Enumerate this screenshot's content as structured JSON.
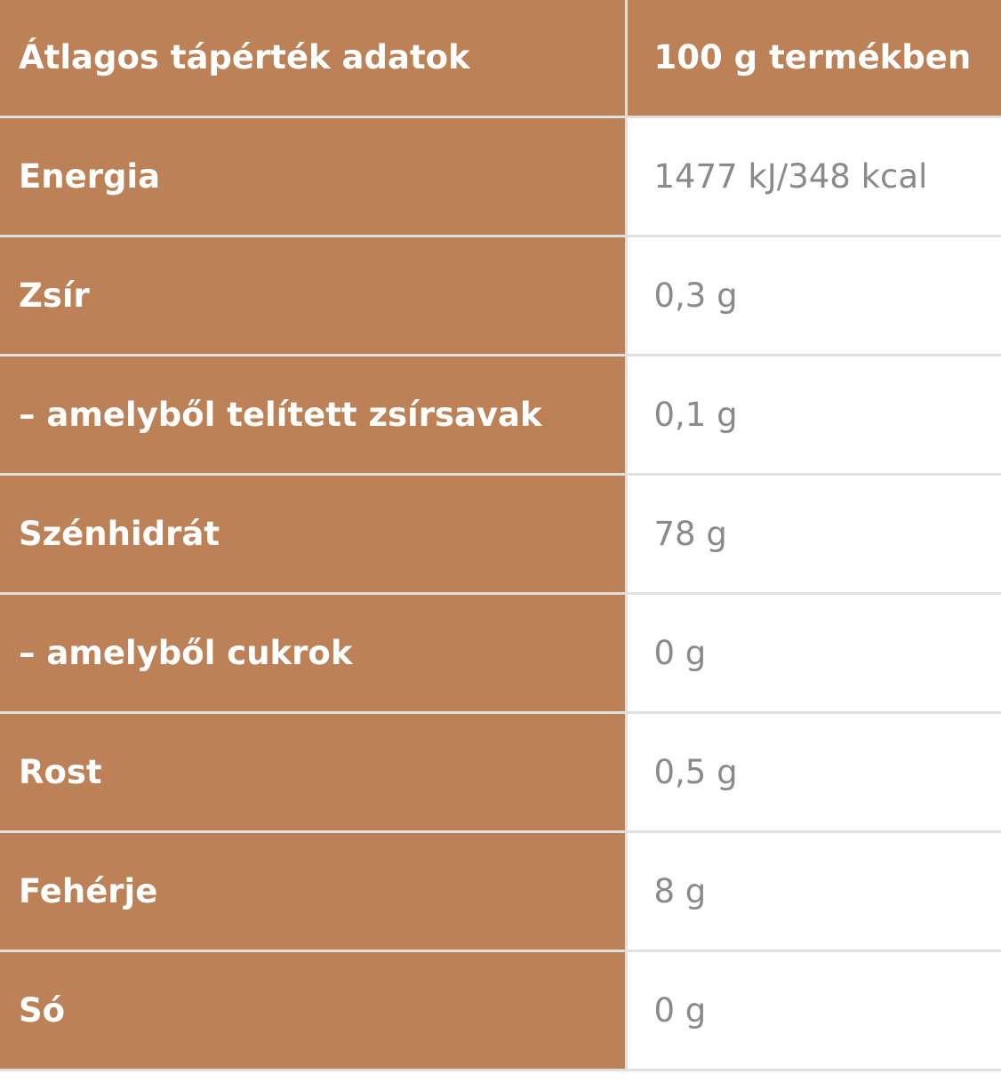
{
  "header": {
    "label": "Átlagos tápérték adatok",
    "value": "100 g termékben"
  },
  "rows": [
    {
      "label": "Energia",
      "value": "1477 kJ/348 kcal"
    },
    {
      "label": "Zsír",
      "value": "0,3 g"
    },
    {
      "label": "– amelyből telített zsírsavak",
      "value": "0,1 g"
    },
    {
      "label": "Szénhidrát",
      "value": "78 g"
    },
    {
      "label": "– amelyből cukrok",
      "value": "0 g"
    },
    {
      "label": "Rost",
      "value": "0,5 g"
    },
    {
      "label": "Fehérje",
      "value": "8 g"
    },
    {
      "label": "Só",
      "value": "0 g"
    }
  ],
  "colors": {
    "label_bg": "#bd8157",
    "border": "#e0e0e0",
    "value_text": "#8a8a8a"
  }
}
